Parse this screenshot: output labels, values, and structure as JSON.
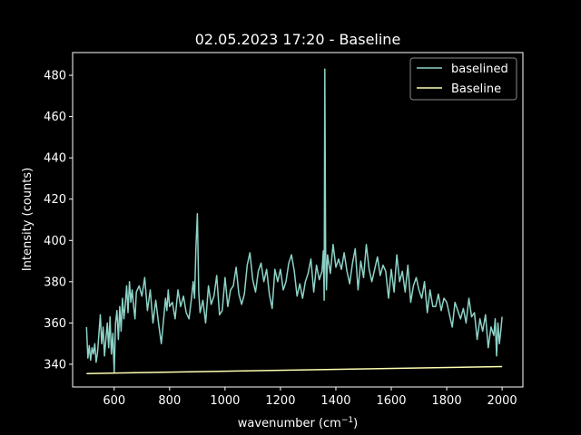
{
  "chart_data": {
    "type": "line",
    "title": "02.05.2023 17:20 - Baseline",
    "xlabel": "wavenumber (cm",
    "xlabel_sup": "−1",
    "xlabel_close": ")",
    "ylabel": "Intensity (counts)",
    "xlim": [
      450,
      2075
    ],
    "ylim": [
      329,
      491
    ],
    "xticks": [
      600,
      800,
      1000,
      1200,
      1400,
      1600,
      1800,
      2000
    ],
    "yticks": [
      340,
      360,
      380,
      400,
      420,
      440,
      460,
      480
    ],
    "legend_position": "top-right",
    "colors": {
      "baselined": "#8dd3c7",
      "baseline": "#ffffb3",
      "axes": "#ffffff",
      "background": "#000000"
    },
    "series": [
      {
        "name": "baselined",
        "x": [
          500,
          505,
          510,
          515,
          520,
          525,
          530,
          535,
          540,
          545,
          550,
          555,
          560,
          565,
          570,
          575,
          580,
          585,
          590,
          595,
          600,
          605,
          610,
          615,
          620,
          625,
          630,
          635,
          640,
          645,
          650,
          655,
          660,
          665,
          670,
          675,
          680,
          690,
          700,
          710,
          720,
          730,
          740,
          750,
          760,
          770,
          780,
          785,
          790,
          795,
          800,
          810,
          820,
          830,
          840,
          850,
          860,
          870,
          880,
          885,
          890,
          895,
          900,
          905,
          910,
          920,
          930,
          940,
          950,
          960,
          970,
          980,
          990,
          1000,
          1010,
          1020,
          1030,
          1040,
          1050,
          1060,
          1070,
          1080,
          1090,
          1100,
          1110,
          1120,
          1130,
          1140,
          1150,
          1160,
          1170,
          1180,
          1190,
          1200,
          1210,
          1220,
          1230,
          1240,
          1250,
          1260,
          1270,
          1280,
          1290,
          1300,
          1310,
          1320,
          1330,
          1340,
          1350,
          1355,
          1358,
          1360,
          1363,
          1366,
          1370,
          1380,
          1390,
          1400,
          1410,
          1420,
          1430,
          1440,
          1450,
          1460,
          1470,
          1480,
          1490,
          1500,
          1510,
          1520,
          1530,
          1540,
          1550,
          1560,
          1570,
          1580,
          1590,
          1600,
          1610,
          1620,
          1630,
          1640,
          1650,
          1660,
          1670,
          1680,
          1690,
          1700,
          1710,
          1720,
          1730,
          1740,
          1750,
          1760,
          1770,
          1780,
          1790,
          1800,
          1810,
          1820,
          1830,
          1840,
          1850,
          1860,
          1870,
          1880,
          1890,
          1900,
          1910,
          1920,
          1930,
          1940,
          1950,
          1960,
          1970,
          1975,
          1980,
          1985,
          1990,
          1995,
          2000
        ],
        "y": [
          358,
          343,
          349,
          342,
          348,
          345,
          350,
          341,
          346,
          355,
          364,
          350,
          358,
          344,
          352,
          360,
          348,
          363,
          345,
          355,
          336,
          360,
          366,
          352,
          368,
          356,
          372,
          362,
          369,
          378,
          365,
          380,
          370,
          376,
          368,
          362,
          375,
          378,
          373,
          382,
          366,
          376,
          360,
          371,
          360,
          350,
          364,
          372,
          366,
          376,
          368,
          370,
          362,
          376,
          368,
          373,
          365,
          362,
          373,
          380,
          372,
          396,
          413,
          375,
          365,
          371,
          360,
          378,
          369,
          373,
          383,
          364,
          366,
          382,
          368,
          376,
          378,
          387,
          374,
          369,
          374,
          388,
          394,
          381,
          375,
          385,
          389,
          380,
          386,
          374,
          367,
          386,
          380,
          386,
          376,
          380,
          389,
          393,
          385,
          373,
          379,
          372,
          380,
          384,
          391,
          375,
          388,
          381,
          385,
          395,
          371,
          483,
          395,
          376,
          393,
          384,
          398,
          387,
          391,
          386,
          394,
          385,
          379,
          389,
          396,
          376,
          390,
          382,
          398,
          386,
          380,
          386,
          392,
          383,
          388,
          385,
          372,
          386,
          375,
          393,
          380,
          385,
          375,
          388,
          370,
          378,
          382,
          376,
          372,
          380,
          365,
          376,
          368,
          368,
          374,
          366,
          372,
          370,
          364,
          358,
          370,
          366,
          362,
          367,
          360,
          372,
          363,
          365,
          352,
          362,
          356,
          364,
          348,
          358,
          354,
          362,
          344,
          360,
          350,
          356,
          363
        ]
      },
      {
        "name": "Baseline",
        "x": [
          500,
          2000
        ],
        "y": [
          335.5,
          338.9
        ]
      }
    ]
  }
}
